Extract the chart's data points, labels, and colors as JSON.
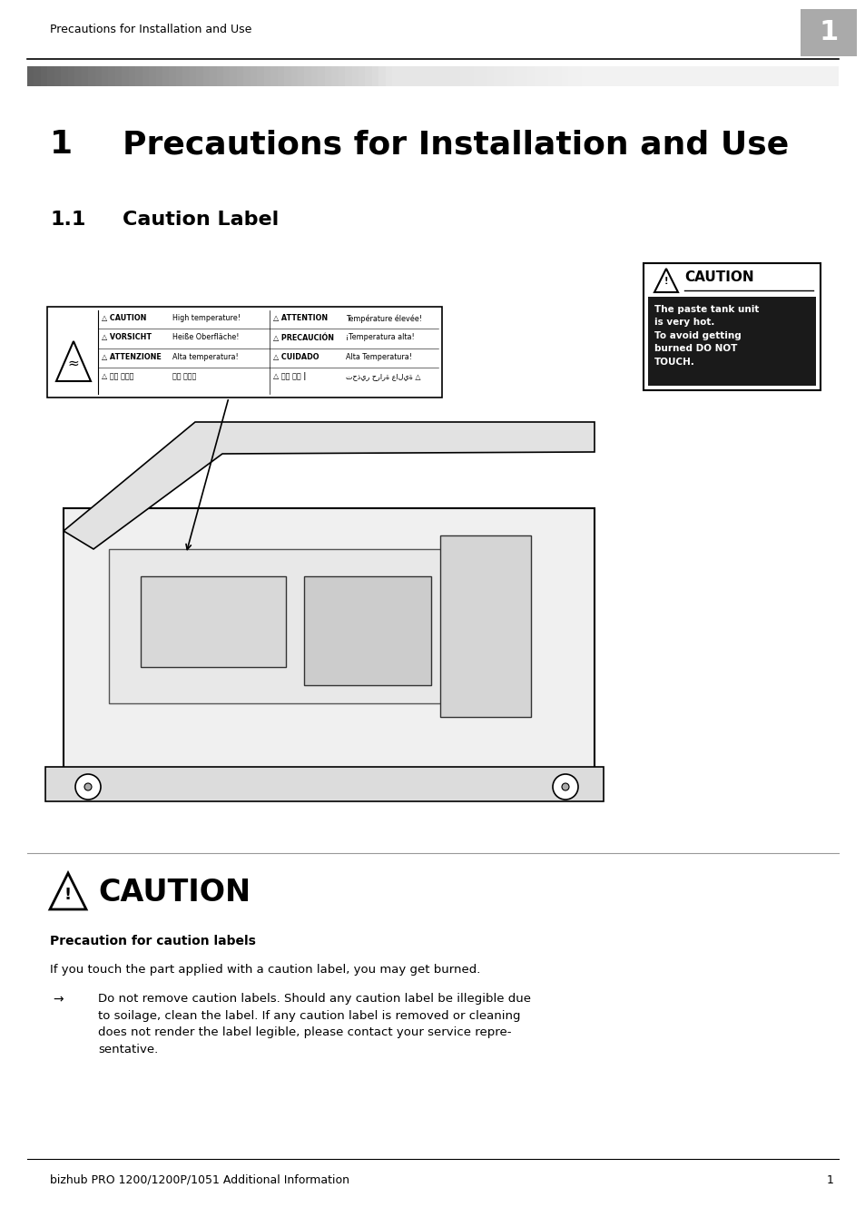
{
  "page_width": 9.54,
  "page_height": 13.52,
  "bg_color": "#ffffff",
  "header_text": "Precautions for Installation and Use",
  "header_page_num": "1",
  "chapter_number": "1",
  "chapter_title": "Precautions for Installation and Use",
  "section_number": "1.1",
  "section_title": "Caution Label",
  "caution_box_title": "CAUTION",
  "caution_box_text": "The paste tank unit\nis very hot.\nTo avoid getting\nburned DO NOT\nTOUCH.",
  "caution_section_title": "CAUTION",
  "caution_precaution_label": "Precaution for caution labels",
  "caution_intro": "If you touch the part applied with a caution label, you may get burned.",
  "caution_body_line1": "Do not remove caution labels. Should any caution label be illegible due",
  "caution_body_line2": "to soilage, clean the label. If any caution label is removed or cleaning",
  "caution_body_line3": "does not render the label legible, please contact your service repre-",
  "caution_body_line4": "sentative.",
  "footer_text": "bizhub PRO 1200/1200P/1051 Additional Information",
  "footer_page": "1",
  "sticker_rows_left_bold": [
    "CAUTION ",
    "VORSICHT ",
    "ATTENZIONE ",
    "注意 高温！"
  ],
  "sticker_rows_left_normal": [
    "High temperature!",
    "Heiße Oberfläche!",
    "Alta temperatura!",
    "注意 高温！"
  ],
  "sticker_rows_right_bold": [
    "ATTENTION ",
    "PRECAUCIÓN ",
    "CUIDADO ",
    "주의 고온 |"
  ],
  "sticker_rows_right_normal": [
    "Température élevée!",
    "¡Temperatura alta!",
    "Alta Temperatura!",
    "تحذير حرارة عالية △"
  ]
}
